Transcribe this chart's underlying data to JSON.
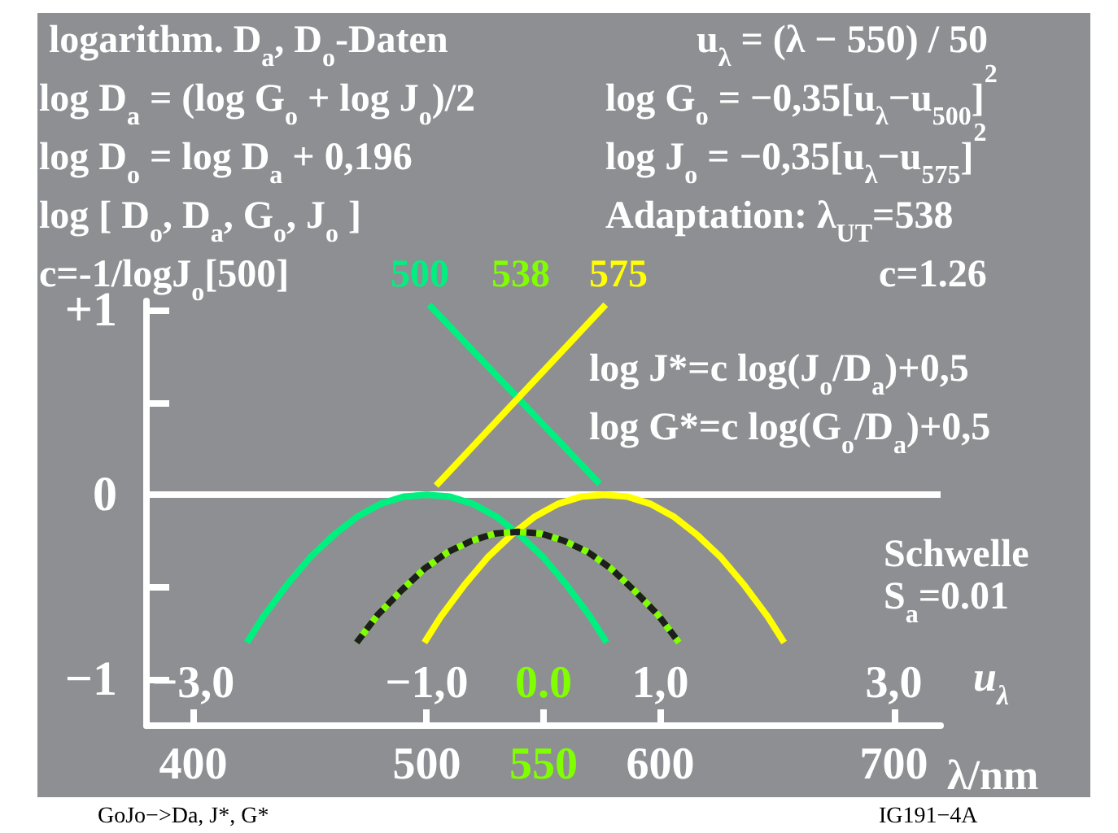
{
  "chart_data": {
    "type": "line",
    "xlabel": "λ/nm",
    "x2label": "u$_{λ}$",
    "xlim": [
      380,
      720
    ],
    "xticks": [
      400,
      500,
      550,
      600,
      700
    ],
    "x2lim": [
      -3.4,
      3.4
    ],
    "x2ticks": [
      {
        "value": -3,
        "label": "−3,0"
      },
      {
        "value": -1,
        "label": "−1,0"
      },
      {
        "value": 0,
        "label": "0.0"
      },
      {
        "value": 1,
        "label": "1,0"
      },
      {
        "value": 3,
        "label": "3,0"
      }
    ],
    "ylim": [
      -1.25,
      1.05
    ],
    "yticks": [
      {
        "value": 1,
        "label": "+1"
      },
      {
        "value": 0.5,
        "label": null
      },
      0,
      {
        "value": -0.5,
        "label": null
      },
      {
        "value": -1,
        "label": "−1"
      }
    ],
    "grid": false,
    "line_style": "solid",
    "ref_lines": [
      {
        "axis": "y",
        "value": 0,
        "color": "#ffffff"
      }
    ],
    "series": [
      {
        "color": "#00f080",
        "x": [
          501,
          574
        ],
        "values": [
          1.03,
          0.06
        ]
      },
      {
        "color": "#ffff00",
        "x": [
          504,
          576.6
        ],
        "values": [
          0.05,
          1.03
        ]
      },
      {
        "color": "#00f080",
        "x": [
          423,
          430,
          440,
          450,
          460,
          470,
          480,
          490,
          500,
          510,
          520,
          530,
          540,
          550,
          560,
          570,
          577
        ],
        "values": [
          -0.8,
          -0.66,
          -0.49,
          -0.34,
          -0.22,
          -0.12,
          -0.05,
          -0.01,
          0,
          -0.01,
          -0.05,
          -0.12,
          -0.22,
          -0.34,
          -0.49,
          -0.66,
          -0.8
        ]
      },
      {
        "color": "#ffff00",
        "x": [
          499,
          506,
          516,
          526,
          536,
          546,
          556,
          566,
          576,
          586,
          596,
          606,
          616,
          626,
          636,
          646,
          653
        ],
        "values": [
          -0.8,
          -0.66,
          -0.49,
          -0.34,
          -0.22,
          -0.12,
          -0.05,
          -0.01,
          0,
          -0.01,
          -0.05,
          -0.12,
          -0.22,
          -0.34,
          -0.49,
          -0.66,
          -0.8
        ]
      },
      {
        "color": "#80ff00",
        "x": [
          470,
          479,
          489,
          499,
          509,
          519,
          529,
          539,
          549,
          559,
          569,
          579,
          589,
          599,
          608
        ],
        "values": [
          -0.8,
          -0.65,
          -0.52,
          -0.4,
          -0.31,
          -0.25,
          -0.21,
          -0.2,
          -0.21,
          -0.25,
          -0.31,
          -0.4,
          -0.52,
          -0.65,
          -0.8
        ]
      },
      {
        "color": "#1e1e1e",
        "line_style": "dashed",
        "x": [
          470,
          479,
          489,
          499,
          509,
          519,
          529,
          539,
          549,
          559,
          569,
          579,
          589,
          599,
          608
        ],
        "values": [
          -0.8,
          -0.65,
          -0.52,
          -0.4,
          -0.31,
          -0.25,
          -0.21,
          -0.2,
          -0.21,
          -0.25,
          -0.31,
          -0.4,
          -0.52,
          -0.65,
          -0.8
        ]
      }
    ],
    "annotations": [
      "logarithm. D$_{a}$, D$_{o}$-Daten",
      "log D$_{a}$ = (log G$_{o}$ + log J$_{o}$)/2",
      "log D$_{o}$ = log D$_{a}$ + 0,196",
      "log [ D$_{o}$, D$_{a}$, G$_{o}$, J$_{o}$ ]",
      "c=-1/logJ$_{o}$[500]",
      "500",
      "538",
      "575",
      "u$_{λ}$ = (λ − 550) / 50",
      "log G$_{o}$ = −0,35[u$_{λ}$−u$_{500}$]$^{2}$",
      "log J$_{o}$ = −0,35[u$_{λ}$−u$_{575}$]$^{2}$",
      "Adaptation: λ$_{UT}$=538",
      "c=1.26",
      "log J*=c log(J$_{o}$/D$_{a}$)+0,5",
      "log G*=c log(G$_{o}$/D$_{a}$)+0,5",
      "Schwelle",
      "S$_{a}$=0.01",
      "GoJo−>Da, J*, G*",
      "IG191−4A"
    ]
  }
}
